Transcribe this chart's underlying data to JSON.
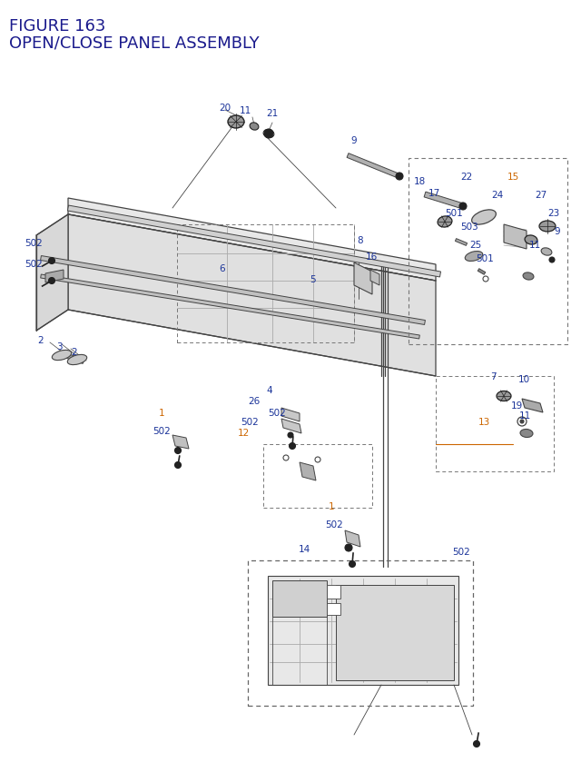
{
  "title_line1": "FIGURE 163",
  "title_line2": "OPEN/CLOSE PANEL ASSEMBLY",
  "title_color": "#1a1a8c",
  "bg_color": "#ffffff",
  "label_color_blue": "#1a3399",
  "label_color_orange": "#cc6600",
  "fig_width": 6.4,
  "fig_height": 8.62,
  "dpi": 100
}
